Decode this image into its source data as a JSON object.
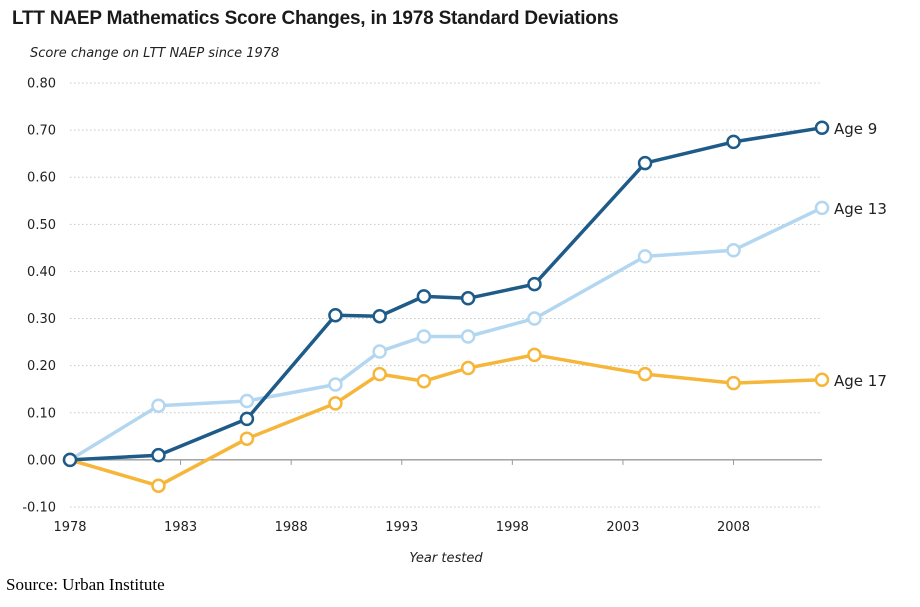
{
  "chart_data": {
    "type": "line",
    "title": "LTT NAEP Mathematics Score Changes, in 1978 Standard Deviations",
    "ylabel": "Score change on LTT NAEP since 1978",
    "xlabel": "Year tested",
    "xlim": [
      1978,
      2012
    ],
    "ylim": [
      -0.1,
      0.8
    ],
    "x_ticks": [
      "1978",
      "1983",
      "1988",
      "1993",
      "1998",
      "2003",
      "2008"
    ],
    "x_tick_values": [
      1978,
      1983,
      1988,
      1993,
      1998,
      2003,
      2008
    ],
    "y_ticks": [
      "0.80",
      "0.70",
      "0.60",
      "0.50",
      "0.40",
      "0.30",
      "0.20",
      "0.10",
      "0.00",
      "-0.10"
    ],
    "y_tick_values": [
      0.8,
      0.7,
      0.6,
      0.5,
      0.4,
      0.3,
      0.2,
      0.1,
      0.0,
      -0.1
    ],
    "grid": "horizontal dotted",
    "legend": "inline labels at right end of lines",
    "series": [
      {
        "name": "Age 13",
        "color": "#b3d7f0",
        "points": [
          [
            1978,
            0.0
          ],
          [
            1982,
            0.115
          ],
          [
            1986,
            0.125
          ],
          [
            1990,
            0.16
          ],
          [
            1992,
            0.23
          ],
          [
            1994,
            0.262
          ],
          [
            1996,
            0.262
          ],
          [
            1999,
            0.3
          ],
          [
            2004,
            0.432
          ],
          [
            2008,
            0.445
          ],
          [
            2012,
            0.535
          ]
        ]
      },
      {
        "name": "Age 17",
        "color": "#f5b63a",
        "points": [
          [
            1978,
            0.0
          ],
          [
            1982,
            -0.055
          ],
          [
            1986,
            0.045
          ],
          [
            1990,
            0.12
          ],
          [
            1992,
            0.182
          ],
          [
            1994,
            0.167
          ],
          [
            1996,
            0.195
          ],
          [
            1999,
            0.223
          ],
          [
            2004,
            0.182
          ],
          [
            2008,
            0.163
          ],
          [
            2012,
            0.17
          ]
        ]
      },
      {
        "name": "Age 9",
        "color": "#1e5b88",
        "points": [
          [
            1978,
            0.0
          ],
          [
            1982,
            0.01
          ],
          [
            1986,
            0.087
          ],
          [
            1990,
            0.307
          ],
          [
            1992,
            0.305
          ],
          [
            1994,
            0.347
          ],
          [
            1996,
            0.343
          ],
          [
            1999,
            0.373
          ],
          [
            2004,
            0.63
          ],
          [
            2008,
            0.675
          ],
          [
            2012,
            0.705
          ]
        ]
      }
    ]
  },
  "source": "Source: Urban Institute"
}
